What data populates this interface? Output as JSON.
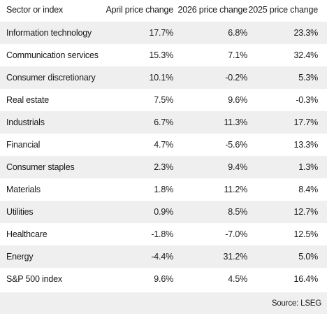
{
  "chart_data": {
    "type": "table",
    "columns": [
      "Sector or index",
      "April price change",
      "2026 price change",
      "2025 price change"
    ],
    "rows": [
      {
        "label": "Information technology",
        "april": "17.7%",
        "ytd2026": "6.8%",
        "y2025": "23.3%"
      },
      {
        "label": "Communication services",
        "april": "15.3%",
        "ytd2026": "7.1%",
        "y2025": "32.4%"
      },
      {
        "label": "Consumer discretionary",
        "april": "10.1%",
        "ytd2026": "-0.2%",
        "y2025": "5.3%"
      },
      {
        "label": "Real estate",
        "april": "7.5%",
        "ytd2026": "9.6%",
        "y2025": "-0.3%"
      },
      {
        "label": "Industrials",
        "april": "6.7%",
        "ytd2026": "11.3%",
        "y2025": "17.7%"
      },
      {
        "label": "Financial",
        "april": "4.7%",
        "ytd2026": "-5.6%",
        "y2025": "13.3%"
      },
      {
        "label": "Consumer staples",
        "april": "2.3%",
        "ytd2026": "9.4%",
        "y2025": "1.3%"
      },
      {
        "label": "Materials",
        "april": "1.8%",
        "ytd2026": "11.2%",
        "y2025": "8.4%"
      },
      {
        "label": "Utilities",
        "april": "0.9%",
        "ytd2026": "8.5%",
        "y2025": "12.7%"
      },
      {
        "label": "Healthcare",
        "april": "-1.8%",
        "ytd2026": "-7.0%",
        "y2025": "12.5%"
      },
      {
        "label": "Energy",
        "april": "-4.4%",
        "ytd2026": "31.2%",
        "y2025": "5.0%"
      },
      {
        "label": "S&P 500 index",
        "april": "9.6%",
        "ytd2026": "4.5%",
        "y2025": "16.4%"
      }
    ],
    "source": "Source: LSEG"
  },
  "colors": {
    "stripe": "#efefef",
    "background": "#ffffff",
    "text": "#1a1a1a"
  }
}
